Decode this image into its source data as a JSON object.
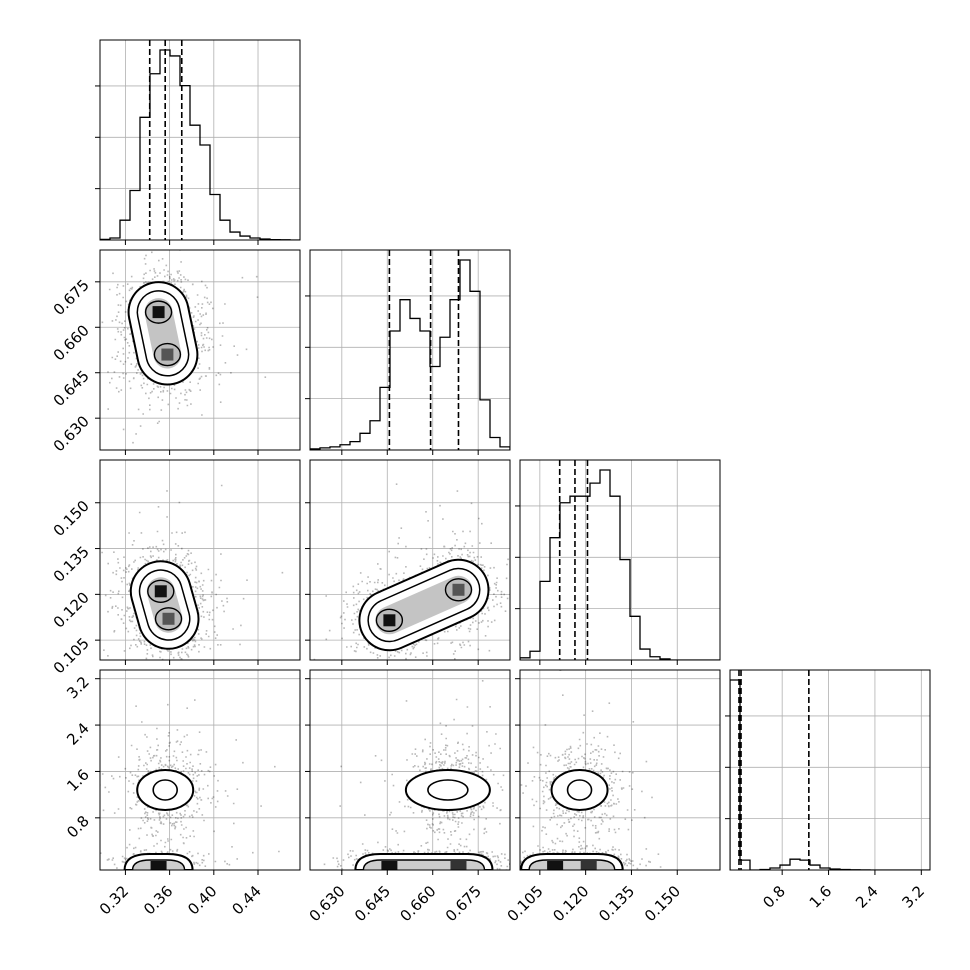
{
  "chart_data": {
    "type": "corner",
    "grid": true,
    "parameters": [
      {
        "ticks": [
          "0.32",
          "0.36",
          "0.40",
          "0.44"
        ],
        "tick_values": [
          0.32,
          0.36,
          0.4,
          0.44
        ],
        "range": [
          0.297,
          0.478
        ],
        "quantiles": [
          0.342,
          0.356,
          0.371
        ],
        "hist": [
          0.3,
          1,
          10,
          25,
          62,
          84,
          96,
          93,
          78,
          58,
          48,
          23,
          10,
          4,
          2,
          1,
          0.5,
          0.2,
          0.1,
          0
        ]
      },
      {
        "ticks": [
          "0.630",
          "0.645",
          "0.660",
          "0.675"
        ],
        "tick_values": [
          0.63,
          0.645,
          0.66,
          0.675
        ],
        "range": [
          0.6195,
          0.6855
        ],
        "quantiles": [
          0.6457,
          0.6593,
          0.6685
        ],
        "hist": [
          0.5,
          1,
          1.5,
          2.5,
          4,
          8,
          14,
          30,
          57,
          72,
          63,
          57,
          40,
          54,
          72,
          91,
          76,
          24,
          6,
          1.5
        ]
      },
      {
        "ticks": [
          "0.105",
          "0.120",
          "0.135",
          "0.150"
        ],
        "tick_values": [
          0.105,
          0.12,
          0.135,
          0.15
        ],
        "range": [
          0.0985,
          0.164
        ],
        "quantiles": [
          0.1115,
          0.1165,
          0.1206
        ],
        "hist": [
          1,
          4,
          36,
          56,
          72,
          75,
          75,
          81,
          87,
          75,
          46,
          20,
          5,
          1.5,
          0.5,
          0,
          0,
          0,
          0,
          0
        ]
      },
      {
        "ticks": [
          "0.8",
          "1.6",
          "2.4",
          "3.2"
        ],
        "tick_values": [
          0.8,
          1.6,
          2.4,
          3.2
        ],
        "range": [
          -0.1,
          3.35
        ],
        "quantiles": [
          0.055,
          0.09,
          1.26
        ],
        "hist": [
          193,
          10,
          0,
          0.5,
          2,
          5,
          11,
          10,
          5,
          2,
          1,
          0.5,
          0.2,
          0.1,
          0,
          0,
          0,
          0,
          0,
          0
        ]
      }
    ],
    "pairs": [
      {
        "row": 1,
        "col": 0,
        "peaks": [
          [
            0.35,
            0.665
          ],
          [
            0.358,
            0.651
          ]
        ]
      },
      {
        "row": 2,
        "col": 0,
        "peaks": [
          [
            0.352,
            0.121
          ],
          [
            0.359,
            0.112
          ]
        ]
      },
      {
        "row": 2,
        "col": 1,
        "peaks": [
          [
            0.6457,
            0.1115
          ],
          [
            0.6685,
            0.1215
          ]
        ]
      },
      {
        "row": 3,
        "col": 0,
        "peaks": [
          [
            0.356,
            1.28
          ],
          [
            0.35,
            0.06
          ]
        ]
      },
      {
        "row": 3,
        "col": 1,
        "peaks": [
          [
            0.665,
            1.28
          ],
          [
            0.6457,
            0.06
          ],
          [
            0.6685,
            0.06
          ]
        ]
      },
      {
        "row": 3,
        "col": 2,
        "peaks": [
          [
            0.118,
            1.28
          ],
          [
            0.11,
            0.06
          ],
          [
            0.121,
            0.06
          ]
        ]
      }
    ]
  }
}
